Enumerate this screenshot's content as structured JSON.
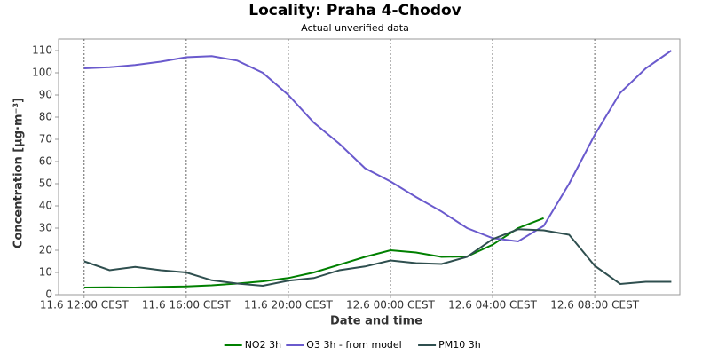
{
  "chart_data": {
    "type": "line",
    "title": "Locality: Praha 4-Chodov",
    "subtitle": "Actual unverified data",
    "x_label": "Date and time",
    "y_label": "Concentration [µg·m⁻³]",
    "x": [
      "11.6 12:00 CEST",
      "11.6 13:00 CEST",
      "11.6 14:00 CEST",
      "11.6 15:00 CEST",
      "11.6 16:00 CEST",
      "11.6 17:00 CEST",
      "11.6 18:00 CEST",
      "11.6 19:00 CEST",
      "11.6 20:00 CEST",
      "11.6 21:00 CEST",
      "11.6 22:00 CEST",
      "11.6 23:00 CEST",
      "12.6 00:00 CEST",
      "12.6 01:00 CEST",
      "12.6 02:00 CEST",
      "12.6 03:00 CEST",
      "12.6 04:00 CEST",
      "12.6 05:00 CEST",
      "12.6 06:00 CEST",
      "12.6 07:00 CEST",
      "12.6 08:00 CEST",
      "12.6 09:00 CEST",
      "12.6 10:00 CEST",
      "12.6 11:00 CEST"
    ],
    "series": [
      {
        "name": "NO2 3h",
        "color": "#008000",
        "values": [
          3.2,
          3.3,
          3.2,
          3.5,
          3.7,
          4.2,
          5,
          6,
          7.5,
          10,
          13.5,
          17,
          20,
          19,
          17,
          17.2,
          22.5,
          30,
          34.5,
          null,
          null,
          null,
          null,
          null
        ]
      },
      {
        "name": "O3 3h - from model",
        "color": "#6a5acd",
        "values": [
          102,
          102.5,
          103.5,
          105,
          107,
          107.5,
          105.5,
          100,
          90,
          77.5,
          68,
          57,
          51,
          44,
          37.5,
          30,
          25.5,
          24,
          31,
          50,
          72,
          91,
          102,
          110
        ]
      },
      {
        "name": "PM10 3h",
        "color": "#2f4f4f",
        "values": [
          15,
          11,
          12.5,
          11,
          10,
          6.5,
          5,
          4,
          6.3,
          7.5,
          11,
          12.7,
          15.4,
          14.2,
          13.8,
          17,
          25,
          29.5,
          29,
          27,
          13,
          4.8,
          5.8,
          5.8
        ]
      }
    ],
    "xlim": [
      "11.6 11:00 CEST",
      "12.6 11:20 CEST"
    ],
    "xticks": [
      "11.6 12:00 CEST",
      "11.6 16:00 CEST",
      "11.6 20:00 CEST",
      "12.6 00:00 CEST",
      "12.6 04:00 CEST",
      "12.6 08:00 CEST"
    ],
    "ylim": [
      0,
      110
    ],
    "yticks": [
      0,
      10,
      20,
      30,
      40,
      50,
      60,
      70,
      80,
      90,
      100,
      110
    ],
    "x_grid": true,
    "legend": "bottom"
  }
}
